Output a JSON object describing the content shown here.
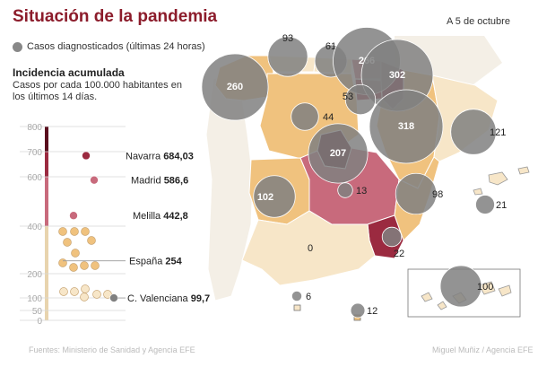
{
  "title": "Situación de la pandemia",
  "date": "A 5 de octubre",
  "legend_label": "Casos diagnosticados (últimas 24 horas)",
  "incidence": {
    "title": "Incidencia acumulada",
    "subtitle": "Casos por cada 100.000 habitantes en los últimos 14 días."
  },
  "source": "Fuentes: Ministerio de Sanidad y Agencia EFE",
  "credit": "Miguel Muñiz / Agencia EFE",
  "colors": {
    "bubble": "#808080",
    "level_top": "#5a0e1e",
    "level_high": "#9b2a40",
    "level_mid": "#c86a7c",
    "level_low": "#f0c27e",
    "level_base": "#f7e6c8",
    "axis_bar": "#e8d4ae"
  },
  "chart_data": {
    "type": "scatter",
    "title": "Incidencia acumulada",
    "yticks": [
      0,
      50,
      100,
      200,
      400,
      600,
      700,
      800
    ],
    "ylim": [
      0,
      800
    ],
    "labeled_points": [
      {
        "name": "Navarra",
        "value": "684,03",
        "y": 684.03
      },
      {
        "name": "Madrid",
        "value": "586,6",
        "y": 586.6
      },
      {
        "name": "Melilla",
        "value": "442,8",
        "y": 442.8
      },
      {
        "name": "España",
        "value": "254",
        "y": 254
      },
      {
        "name": "C. Valenciana",
        "value": "99,7",
        "y": 99.7
      }
    ]
  },
  "map": {
    "bubbles": [
      {
        "label": "93",
        "cases": 93
      },
      {
        "label": "61",
        "cases": 61
      },
      {
        "label": "266",
        "cases": 266
      },
      {
        "label": "302",
        "cases": 302
      },
      {
        "label": "260",
        "cases": 260
      },
      {
        "label": "53",
        "cases": 53
      },
      {
        "label": "44",
        "cases": 44
      },
      {
        "label": "318",
        "cases": 318
      },
      {
        "label": "121",
        "cases": 121
      },
      {
        "label": "207",
        "cases": 207
      },
      {
        "label": "102",
        "cases": 102
      },
      {
        "label": "13",
        "cases": 13
      },
      {
        "label": "98",
        "cases": 98
      },
      {
        "label": "21",
        "cases": 21
      },
      {
        "label": "0",
        "cases": 0
      },
      {
        "label": "22",
        "cases": 22
      },
      {
        "label": "100",
        "cases": 100
      },
      {
        "label": "6",
        "cases": 6
      },
      {
        "label": "12",
        "cases": 12
      }
    ]
  }
}
